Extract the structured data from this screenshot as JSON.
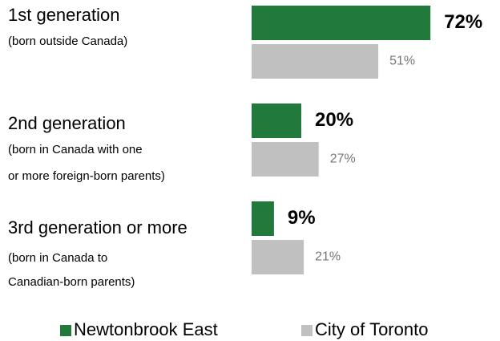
{
  "chart_data": {
    "type": "bar",
    "orientation": "horizontal",
    "categories": [
      "1st generation",
      "2nd generation",
      "3rd generation or more"
    ],
    "category_notes": [
      [
        "(born outside Canada)"
      ],
      [
        "(born in Canada with one",
        "or more foreign-born parents)"
      ],
      [
        "(born in Canada to",
        "Canadian-born parents)"
      ]
    ],
    "series": [
      {
        "name": "Newtonbrook East",
        "color": "#217a3c",
        "values": [
          72,
          20,
          9
        ],
        "value_labels": [
          "72%",
          "20%",
          "9%"
        ]
      },
      {
        "name": "City of Toronto",
        "color": "#c0c0c0",
        "values": [
          51,
          27,
          21
        ],
        "value_labels": [
          "51%",
          "27%",
          "21%"
        ]
      }
    ],
    "xlim": [
      0,
      100
    ],
    "legend": "bottom"
  }
}
